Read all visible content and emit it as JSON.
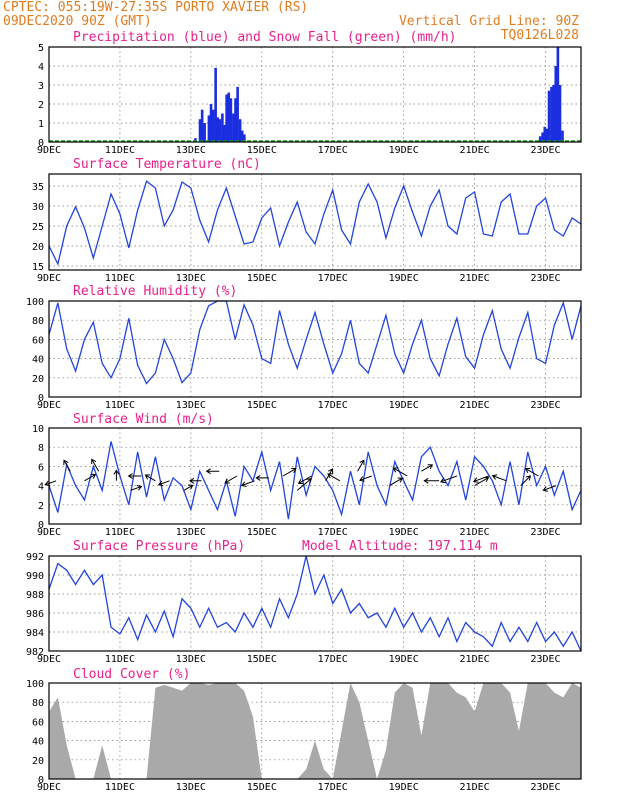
{
  "header": {
    "station": "CPTEC:   055:19W-27:35S  PORTO XAVIER (RS)",
    "run": "09DEC2020 90Z (GMT)",
    "grid_note": "Vertical Grid Line: 90Z",
    "code": "TQ0126L028"
  },
  "colors": {
    "header": "#e07c20",
    "title": "#e8208c",
    "line": "#2244dd",
    "precip": "#1a2ee0",
    "snow": "#10a010",
    "cloud": "#a9a9a9"
  },
  "x_ticks": [
    "9DEC",
    "11DEC",
    "13DEC",
    "15DEC",
    "17DEC",
    "19DEC",
    "21DEC",
    "23DEC"
  ],
  "chart_data": [
    {
      "id": "precip",
      "type": "bar",
      "title": "Precipitation (blue) and Snow Fall (green) (mm/h)",
      "ylim": [
        0,
        5
      ],
      "yticks": [
        0,
        1,
        2,
        3,
        4,
        5
      ],
      "grid": true,
      "x_unit": "days since 9DEC 00Z",
      "series": [
        {
          "name": "Precipitation",
          "kind": "bars",
          "x": [
            4.12,
            4.25,
            4.31,
            4.38,
            4.5,
            4.56,
            4.62,
            4.69,
            4.75,
            4.81,
            4.88,
            4.94,
            5.0,
            5.06,
            5.12,
            5.19,
            5.25,
            5.31,
            5.38,
            5.44,
            5.5,
            13.84,
            13.91,
            13.97,
            14.03,
            14.09,
            14.16,
            14.22,
            14.28,
            14.34,
            14.4,
            14.47
          ],
          "values": [
            0.2,
            1.2,
            1.7,
            1.0,
            1.4,
            2.0,
            1.7,
            3.9,
            1.3,
            1.2,
            1.5,
            0.9,
            2.5,
            2.6,
            2.3,
            1.5,
            2.3,
            2.9,
            1.2,
            0.6,
            0.4,
            0.3,
            0.5,
            0.8,
            0.7,
            2.7,
            2.9,
            3.0,
            4.0,
            5.0,
            3.0,
            0.6
          ]
        },
        {
          "name": "Snow Fall",
          "kind": "bars",
          "x": [],
          "values": []
        }
      ]
    },
    {
      "id": "temp",
      "type": "line",
      "title": "Surface Temperature (nC)",
      "ylim": [
        14,
        38
      ],
      "yticks": [
        15,
        20,
        25,
        30,
        35
      ],
      "grid": true,
      "series": [
        {
          "name": "Temperature",
          "x": [
            0,
            0.25,
            0.5,
            0.75,
            1.0,
            1.25,
            1.5,
            1.75,
            2.0,
            2.25,
            2.5,
            2.75,
            3.0,
            3.25,
            3.5,
            3.75,
            4.0,
            4.25,
            4.5,
            4.75,
            5.0,
            5.25,
            5.5,
            5.75,
            6.0,
            6.25,
            6.5,
            6.75,
            7.0,
            7.25,
            7.5,
            7.75,
            8.0,
            8.25,
            8.5,
            8.75,
            9.0,
            9.25,
            9.5,
            9.75,
            10.0,
            10.25,
            10.5,
            10.75,
            11.0,
            11.25,
            11.5,
            11.75,
            12.0,
            12.25,
            12.5,
            12.75,
            13.0,
            13.25,
            13.5,
            13.75,
            14.0,
            14.25,
            14.5,
            14.75,
            15.0
          ],
          "values": [
            20.0,
            15.5,
            25.0,
            29.8,
            24.5,
            17.0,
            25.0,
            33.0,
            28.0,
            19.5,
            29.0,
            36.2,
            34.5,
            25.0,
            29.0,
            36.0,
            34.5,
            26.5,
            21.0,
            29.0,
            34.5,
            27.5,
            20.5,
            21.0,
            27.0,
            29.5,
            20.0,
            26.0,
            31.0,
            23.5,
            20.5,
            28.0,
            34.0,
            24.0,
            20.5,
            31.0,
            35.5,
            31.0,
            22.0,
            29.5,
            35.0,
            28.5,
            22.5,
            30.0,
            34.0,
            25.0,
            23.0,
            32.0,
            33.5,
            23.0,
            22.5,
            31.0,
            33.0,
            23.0,
            23.0,
            30.0,
            32.0,
            24.0,
            22.5,
            27.0,
            25.5
          ]
        }
      ]
    },
    {
      "id": "rh",
      "type": "line",
      "title": "Relative Humidity (%)",
      "ylim": [
        0,
        100
      ],
      "yticks": [
        0,
        20,
        40,
        60,
        80,
        100
      ],
      "grid": true,
      "series": [
        {
          "name": "Relative Humidity",
          "x": [
            0,
            0.25,
            0.5,
            0.75,
            1.0,
            1.25,
            1.5,
            1.75,
            2.0,
            2.25,
            2.5,
            2.75,
            3.0,
            3.25,
            3.5,
            3.75,
            4.0,
            4.25,
            4.5,
            4.75,
            5.0,
            5.25,
            5.5,
            5.75,
            6.0,
            6.25,
            6.5,
            6.75,
            7.0,
            7.25,
            7.5,
            7.75,
            8.0,
            8.25,
            8.5,
            8.75,
            9.0,
            9.25,
            9.5,
            9.75,
            10.0,
            10.25,
            10.5,
            10.75,
            11.0,
            11.25,
            11.5,
            11.75,
            12.0,
            12.25,
            12.5,
            12.75,
            13.0,
            13.25,
            13.5,
            13.75,
            14.0,
            14.25,
            14.5,
            14.75,
            15.0
          ],
          "values": [
            65,
            98,
            50,
            27,
            60,
            78,
            35,
            20,
            40,
            82,
            33,
            14,
            25,
            60,
            40,
            15,
            25,
            70,
            95,
            100,
            100,
            60,
            96,
            75,
            40,
            35,
            90,
            55,
            30,
            60,
            88,
            55,
            25,
            45,
            80,
            35,
            25,
            55,
            85,
            45,
            25,
            55,
            80,
            40,
            22,
            55,
            82,
            42,
            30,
            65,
            90,
            50,
            30,
            62,
            88,
            40,
            35,
            75,
            98,
            60,
            95
          ]
        }
      ]
    },
    {
      "id": "wind",
      "type": "line",
      "title": "Surface Wind (m/s)",
      "ylim": [
        0,
        10
      ],
      "yticks": [
        0,
        2,
        4,
        6,
        8,
        10
      ],
      "grid": true,
      "series": [
        {
          "name": "Wind speed",
          "x": [
            0,
            0.25,
            0.5,
            0.75,
            1.0,
            1.25,
            1.5,
            1.75,
            2.0,
            2.25,
            2.5,
            2.75,
            3.0,
            3.25,
            3.5,
            3.75,
            4.0,
            4.25,
            4.5,
            4.75,
            5.0,
            5.25,
            5.5,
            5.75,
            6.0,
            6.25,
            6.5,
            6.75,
            7.0,
            7.25,
            7.5,
            7.75,
            8.0,
            8.25,
            8.5,
            8.75,
            9.0,
            9.25,
            9.5,
            9.75,
            10.0,
            10.25,
            10.5,
            10.75,
            11.0,
            11.25,
            11.5,
            11.75,
            12.0,
            12.25,
            12.5,
            12.75,
            13.0,
            13.25,
            13.5,
            13.75,
            14.0,
            14.25,
            14.5,
            14.75,
            15.0
          ],
          "values": [
            4.0,
            1.2,
            6.2,
            4.0,
            2.5,
            6.0,
            3.5,
            8.6,
            5.0,
            2.0,
            7.5,
            2.8,
            7.0,
            2.5,
            4.8,
            4.0,
            1.5,
            5.5,
            3.5,
            1.5,
            4.5,
            0.8,
            6.0,
            4.5,
            7.5,
            3.5,
            6.5,
            0.5,
            7.0,
            3.0,
            6.0,
            5.0,
            3.5,
            1.0,
            5.5,
            2.0,
            7.5,
            4.0,
            2.0,
            6.5,
            4.5,
            2.5,
            7.0,
            8.0,
            5.5,
            4.0,
            6.5,
            2.5,
            7.0,
            6.0,
            4.5,
            2.0,
            6.5,
            2.0,
            7.5,
            4.0,
            6.0,
            3.0,
            5.5,
            1.5,
            3.5
          ]
        }
      ],
      "arrows": {
        "x": [
          0.2,
          0.6,
          1.0,
          1.4,
          1.9,
          2.3,
          2.6,
          3.0,
          3.4,
          3.8,
          4.3,
          4.8,
          5.3,
          5.8,
          6.2,
          6.6,
          7.0,
          7.4,
          7.8,
          8.2,
          8.7,
          9.1,
          9.6,
          10.1,
          10.5,
          11.0,
          11.5,
          12.0,
          12.4,
          12.9,
          13.3,
          13.8,
          14.3
        ],
        "values": [
          4.5,
          5.5,
          4.5,
          5.5,
          4.5,
          3.5,
          5.0,
          4.5,
          4.5,
          3.5,
          4.5,
          5.5,
          5.0,
          4.5,
          4.8,
          5.0,
          3.5,
          5.0,
          4.5,
          4.5,
          5.5,
          5.0,
          4.0,
          5.0,
          5.5,
          4.5,
          5.0,
          4.0,
          5.0,
          4.5,
          4.0,
          5.0,
          4.0
        ],
        "dir_deg": [
          200,
          120,
          30,
          120,
          90,
          20,
          180,
          150,
          200,
          30,
          180,
          180,
          210,
          200,
          180,
          30,
          40,
          210,
          60,
          150,
          60,
          200,
          30,
          150,
          30,
          180,
          200,
          30,
          200,
          160,
          45,
          150,
          200
        ],
        "speed": [
          2.5,
          3.0,
          3.0,
          3.5,
          2.0,
          2.5,
          3.0,
          2.5,
          2.5,
          2.0,
          2.5,
          3.0,
          3.5,
          3.5,
          3.0,
          4.0,
          5.5,
          4.0,
          3.5,
          3.5,
          3.0,
          3.0,
          4.0,
          4.5,
          3.0,
          4.0,
          5.0,
          4.5,
          4.5,
          4.0,
          3.5,
          4.0,
          3.5
        ]
      }
    },
    {
      "id": "pressure",
      "type": "line",
      "title": "Surface Pressure (hPa)",
      "annotation": "Model Altitude: 197.114  m",
      "ylim": [
        982,
        992
      ],
      "yticks": [
        982,
        984,
        986,
        988,
        990,
        992
      ],
      "grid": true,
      "series": [
        {
          "name": "Surface pressure",
          "x": [
            0,
            0.25,
            0.5,
            0.75,
            1.0,
            1.25,
            1.5,
            1.75,
            2.0,
            2.25,
            2.5,
            2.75,
            3.0,
            3.25,
            3.5,
            3.75,
            4.0,
            4.25,
            4.5,
            4.75,
            5.0,
            5.25,
            5.5,
            5.75,
            6.0,
            6.25,
            6.5,
            6.75,
            7.0,
            7.25,
            7.5,
            7.75,
            8.0,
            8.25,
            8.5,
            8.75,
            9.0,
            9.25,
            9.5,
            9.75,
            10.0,
            10.25,
            10.5,
            10.75,
            11.0,
            11.25,
            11.5,
            11.75,
            12.0,
            12.25,
            12.5,
            12.75,
            13.0,
            13.25,
            13.5,
            13.75,
            14.0,
            14.25,
            14.5,
            14.75,
            15.0
          ],
          "values": [
            988.5,
            991.2,
            990.5,
            989.0,
            990.5,
            989.0,
            990.0,
            984.5,
            983.8,
            985.5,
            983.2,
            985.8,
            984.0,
            986.2,
            983.5,
            987.5,
            986.5,
            984.5,
            986.5,
            984.5,
            985.0,
            984.0,
            986.0,
            984.5,
            986.5,
            984.5,
            987.5,
            985.5,
            988.0,
            992.0,
            988.0,
            990.0,
            987.0,
            988.5,
            986.0,
            987.0,
            985.5,
            986.0,
            984.5,
            986.5,
            984.5,
            986.0,
            984.0,
            985.5,
            983.5,
            985.5,
            983.0,
            985.0,
            984.0,
            983.5,
            982.5,
            985.0,
            983.0,
            984.5,
            983.0,
            985.0,
            983.0,
            984.0,
            982.5,
            984.0,
            982.0
          ]
        }
      ]
    },
    {
      "id": "cloud",
      "type": "area",
      "title": "Cloud Cover (%)",
      "ylim": [
        0,
        100
      ],
      "yticks": [
        0,
        20,
        40,
        60,
        80,
        100
      ],
      "grid": true,
      "series": [
        {
          "name": "Cloud cover",
          "x": [
            0,
            0.25,
            0.5,
            0.75,
            1.0,
            1.25,
            1.5,
            1.75,
            2.0,
            2.25,
            2.5,
            2.75,
            3.0,
            3.25,
            3.5,
            3.75,
            4.0,
            4.25,
            4.5,
            4.75,
            5.0,
            5.25,
            5.5,
            5.75,
            6.0,
            6.25,
            6.5,
            6.75,
            7.0,
            7.25,
            7.5,
            7.75,
            8.0,
            8.25,
            8.5,
            8.75,
            9.0,
            9.25,
            9.5,
            9.75,
            10.0,
            10.25,
            10.5,
            10.75,
            11.0,
            11.25,
            11.5,
            11.75,
            12.0,
            12.25,
            12.5,
            12.75,
            13.0,
            13.25,
            13.5,
            13.75,
            14.0,
            14.25,
            14.5,
            14.75,
            15.0
          ],
          "values": [
            70,
            85,
            35,
            0,
            0,
            0,
            35,
            0,
            0,
            0,
            0,
            0,
            95,
            98,
            95,
            92,
            100,
            100,
            98,
            100,
            100,
            100,
            92,
            65,
            0,
            0,
            0,
            0,
            0,
            10,
            40,
            10,
            0,
            50,
            100,
            80,
            40,
            0,
            30,
            90,
            100,
            95,
            45,
            100,
            100,
            100,
            90,
            85,
            70,
            100,
            100,
            100,
            90,
            50,
            100,
            100,
            100,
            90,
            85,
            100,
            95
          ]
        }
      ]
    }
  ]
}
